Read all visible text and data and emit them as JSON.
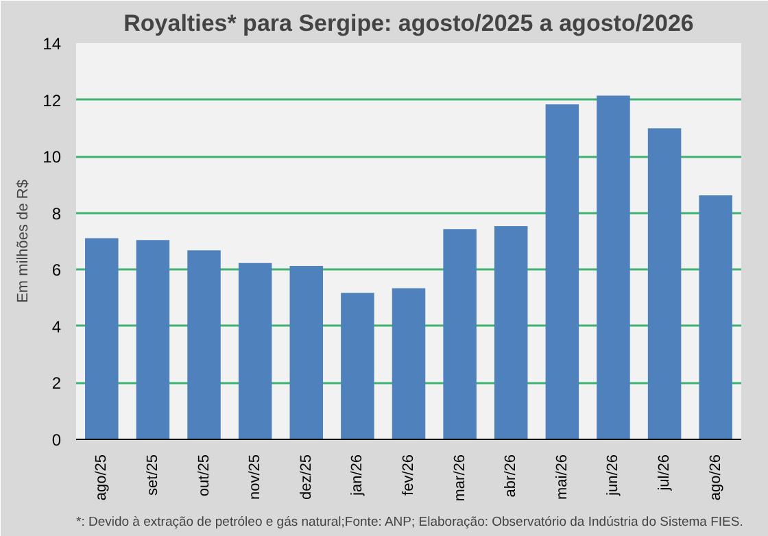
{
  "chart_data": {
    "type": "bar",
    "title": "Royalties* para Sergipe: agosto/2025 a agosto/2026",
    "ylabel": "Em milhões de R$",
    "categories": [
      "ago/25",
      "set/25",
      "out/25",
      "nov/25",
      "dez/25",
      "jan/26",
      "fev/26",
      "mar/26",
      "abr/26",
      "mai/26",
      "jun/26",
      "jul/26",
      "ago/26"
    ],
    "values": [
      7.11,
      7.04,
      6.68,
      6.23,
      6.13,
      5.18,
      5.34,
      7.43,
      7.53,
      11.84,
      12.15,
      10.99,
      8.62
    ],
    "color": "#4f81bd",
    "ylim": [
      0,
      14
    ],
    "yticks": [
      0,
      2,
      4,
      6,
      8,
      10,
      12,
      14
    ],
    "grid": "y",
    "annotations": [
      "*: Devido à extração de petróleo e gás natural;Fonte: ANP; Elaboração: Observatório da Indústria do Sistema FIES."
    ]
  }
}
